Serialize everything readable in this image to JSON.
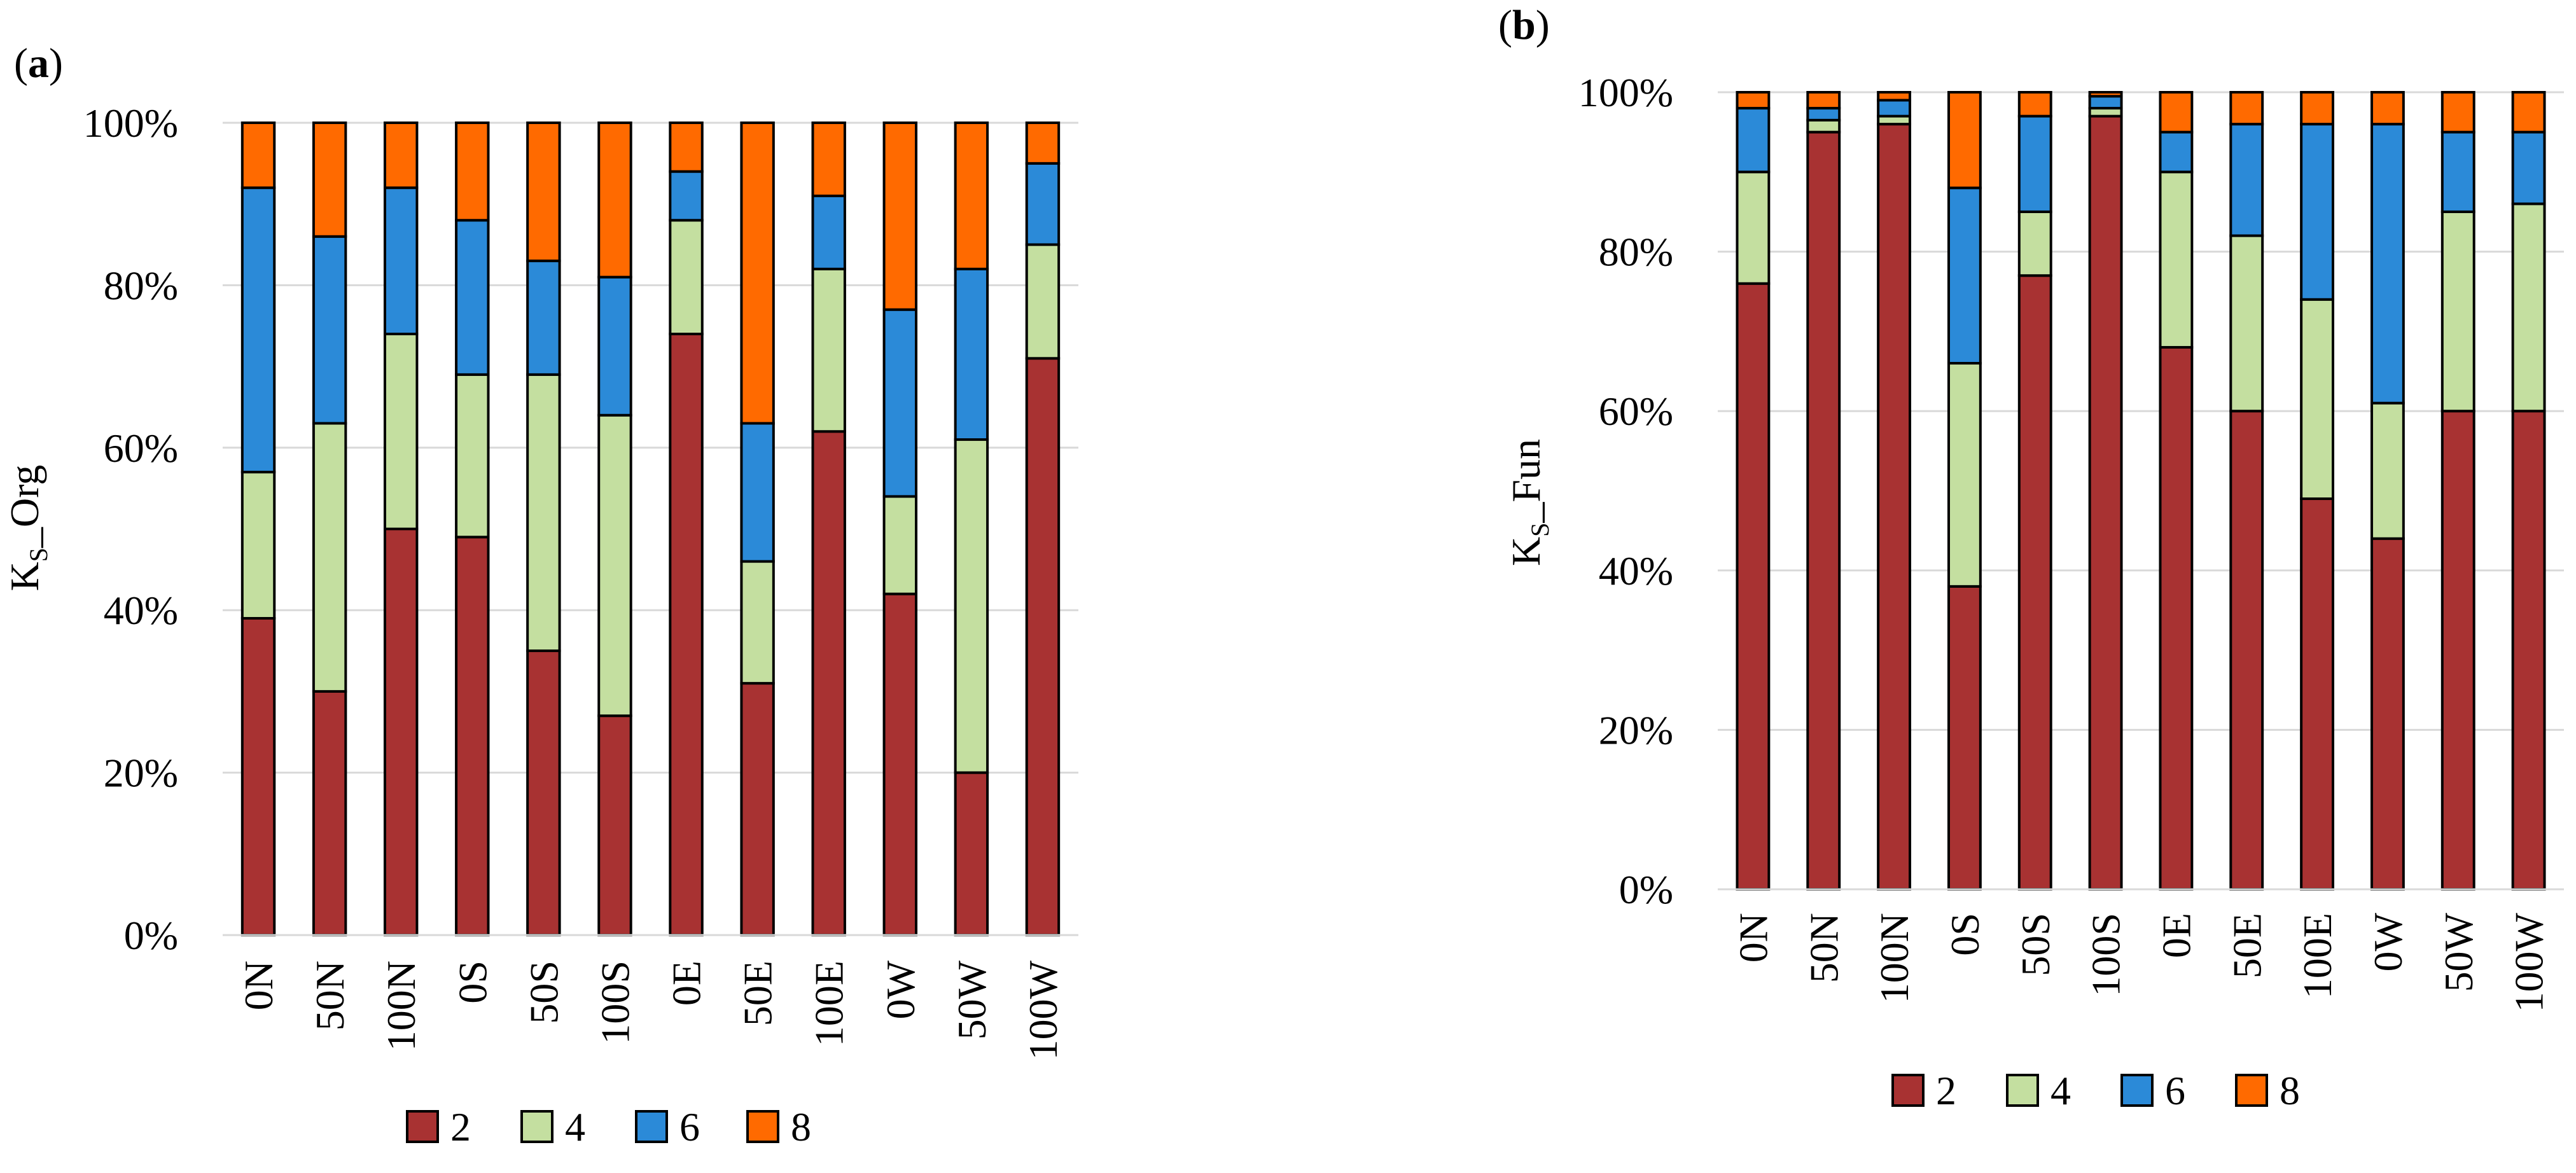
{
  "colors": {
    "2": "#a83232",
    "4": "#c4dfa0",
    "6": "#2b8ad8",
    "8": "#ff6a00"
  },
  "chart_data": [
    {
      "type": "bar",
      "stacked": true,
      "panel": "a",
      "ylabel": "K",
      "ylabel_sub": "S",
      "ylabel_rest": "_Org",
      "ylim": [
        0,
        100
      ],
      "yticks": [
        "0%",
        "20%",
        "40%",
        "60%",
        "80%",
        "100%"
      ],
      "categories": [
        "0N",
        "50N",
        "100N",
        "0S",
        "50S",
        "100S",
        "0E",
        "50E",
        "100E",
        "0W",
        "50W",
        "100W"
      ],
      "series": [
        {
          "name": "2",
          "values": [
            39,
            30,
            50,
            49,
            35,
            27,
            74,
            31,
            62,
            42,
            20,
            71
          ]
        },
        {
          "name": "4",
          "values": [
            18,
            33,
            24,
            20,
            34,
            37,
            14,
            15,
            20,
            12,
            41,
            14
          ]
        },
        {
          "name": "6",
          "values": [
            35,
            23,
            18,
            19,
            14,
            17,
            6,
            17,
            9,
            23,
            21,
            10
          ]
        },
        {
          "name": "8",
          "values": [
            8,
            14,
            8,
            12,
            17,
            19,
            6,
            37,
            9,
            23,
            18,
            5
          ]
        }
      ],
      "legend": [
        "2",
        "4",
        "6",
        "8"
      ],
      "legend_position": "bottom"
    },
    {
      "type": "bar",
      "stacked": true,
      "panel": "b",
      "ylabel": "K",
      "ylabel_sub": "S",
      "ylabel_rest": "_Fun",
      "ylim": [
        0,
        100
      ],
      "yticks": [
        "0%",
        "20%",
        "40%",
        "60%",
        "80%",
        "100%"
      ],
      "categories": [
        "0N",
        "50N",
        "100N",
        "0S",
        "50S",
        "100S",
        "0E",
        "50E",
        "100E",
        "0W",
        "50W",
        "100W"
      ],
      "series": [
        {
          "name": "2",
          "values": [
            76,
            95,
            96,
            38,
            77,
            97,
            68,
            60,
            49,
            44,
            60,
            60
          ]
        },
        {
          "name": "4",
          "values": [
            14,
            1.5,
            1,
            28,
            8,
            1,
            22,
            22,
            25,
            17,
            25,
            26
          ]
        },
        {
          "name": "6",
          "values": [
            8,
            1.5,
            2,
            22,
            12,
            1.5,
            5,
            14,
            22,
            35,
            10,
            9
          ]
        },
        {
          "name": "8",
          "values": [
            2,
            2,
            1,
            12,
            3,
            0.5,
            5,
            4,
            4,
            4,
            5,
            5
          ]
        }
      ],
      "legend": [
        "2",
        "4",
        "6",
        "8"
      ],
      "legend_position": "bottom"
    }
  ]
}
